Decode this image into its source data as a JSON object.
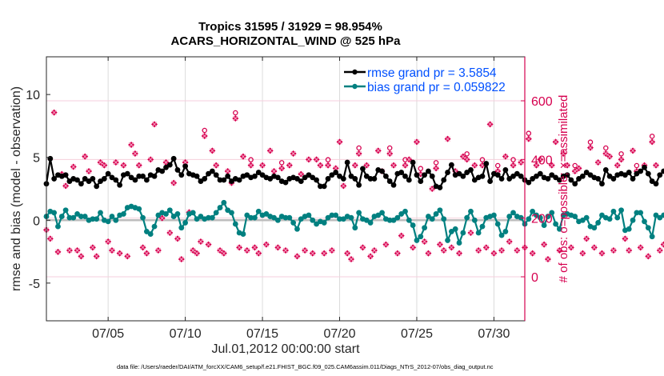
{
  "chart_data": {
    "type": "line",
    "title": [
      "Tropics 31595 / 31929 = 98.954%",
      "ACARS_HORIZONTAL_WIND @ 525 hPa"
    ],
    "xlabel": "Jul.01,2012 00:00:00 start",
    "ylabel": "rmse and bias (model - observation)",
    "y2label": "# of obs: o=possible; ×=assimilated",
    "footnote": "data file: /Users/raeder/DAI/ATM_forcXX/CAM6_setup/f.e21.FHIST_BGC.f09_025.CAM6assim.011/Diags_NTrS_2012-07/obs_diag_output.nc",
    "xlim": [
      1.0,
      32.0
    ],
    "x_ticks": [
      5,
      10,
      15,
      20,
      25,
      30
    ],
    "x_tick_labels": [
      "07/05",
      "07/10",
      "07/15",
      "07/20",
      "07/25",
      "07/30"
    ],
    "ylim": [
      -8,
      13
    ],
    "y_ticks": [
      -5,
      0,
      5,
      10
    ],
    "y_tick_labels": [
      "-5",
      "0",
      "5",
      "10"
    ],
    "y2lim": [
      -150,
      750
    ],
    "y2_ticks": [
      0,
      200,
      400,
      600
    ],
    "y2_tick_labels": [
      "0",
      "200",
      "400",
      "600"
    ],
    "grid": true,
    "zero_line": 0,
    "legend_position": "top-right",
    "series": [
      {
        "name": "rmse grand pr = 3.5854",
        "color": "#000000",
        "axis": "left",
        "x_start": 1.0,
        "x_step": 0.25,
        "values": [
          2.9,
          4.9,
          3.3,
          3.6,
          3.5,
          3.6,
          3.1,
          3.3,
          3.2,
          2.9,
          3.3,
          3.1,
          3.3,
          2.7,
          3.1,
          3.3,
          3.7,
          3.4,
          3.2,
          2.8,
          3.6,
          3.7,
          3.4,
          3.2,
          3.5,
          3.5,
          3.2,
          3.6,
          3.5,
          4.0,
          3.9,
          4.2,
          4.4,
          4.9,
          4.0,
          3.6,
          4.3,
          3.7,
          3.6,
          3.5,
          3.1,
          3.3,
          3.7,
          3.9,
          3.6,
          3.2,
          3.2,
          3.5,
          3.1,
          3.3,
          3.2,
          3.5,
          3.6,
          3.4,
          3.5,
          3.8,
          3.6,
          3.4,
          3.3,
          3.5,
          3.4,
          3.1,
          3.0,
          3.3,
          3.4,
          3.3,
          3.1,
          3.4,
          3.6,
          3.4,
          3.2,
          2.7,
          2.7,
          3.3,
          3.6,
          3.8,
          3.5,
          3.3,
          4.6,
          3.5,
          3.3,
          2.8,
          4.1,
          3.5,
          3.3,
          3.3,
          4.0,
          3.9,
          3.5,
          3.1,
          2.8,
          3.7,
          3.8,
          3.5,
          3.2,
          4.6,
          3.6,
          3.1,
          3.6,
          3.9,
          3.5,
          2.7,
          2.6,
          3.2,
          3.8,
          4.4,
          3.6,
          3.7,
          3.5,
          3.8,
          4.0,
          3.2,
          3.4,
          3.5,
          4.5,
          3.1,
          3.7,
          3.6,
          3.3,
          4.0,
          3.3,
          3.5,
          3.7,
          3.5,
          3.2,
          3.0,
          3.3,
          3.5,
          3.7,
          3.4,
          3.3,
          3.6,
          3.4,
          3.2,
          3.5,
          3.6,
          3.2,
          2.9,
          3.3,
          3.5,
          3.8,
          3.6,
          3.4,
          3.3,
          2.9,
          4.0,
          3.5,
          3.3,
          3.6,
          3.7,
          3.6,
          3.8,
          3.3,
          3.7,
          3.9,
          4.2,
          3.7,
          3.1,
          2.9,
          3.6,
          3.9,
          4.2,
          4.0,
          3.6,
          3.4,
          3.3,
          3.5,
          3.4,
          3.6,
          3.2,
          3.3,
          3.1,
          3.4,
          3.3,
          3.6,
          3.4,
          3.2,
          3.1,
          3.4,
          3.6,
          3.3,
          3.0,
          3.4,
          3.7,
          3.8,
          3.3,
          3.5,
          3.4,
          3.2,
          3.1,
          3.5,
          3.0,
          2.9,
          3.4,
          4.3,
          3.9,
          3.5,
          4.1,
          3.7,
          3.7,
          3.8,
          3.9,
          4.0,
          4.0,
          4.2
        ]
      },
      {
        "name": "bias grand pr = 0.059822",
        "color": "#008080",
        "axis": "left",
        "x_start": 1.0,
        "x_step": 0.25,
        "values": [
          0.3,
          0.7,
          0.6,
          -0.5,
          0.3,
          0.8,
          0.2,
          0.2,
          0.5,
          0.3,
          0.3,
          0.0,
          0.1,
          0.1,
          0.6,
          0.0,
          -0.1,
          0.3,
          0.0,
          0.4,
          0.5,
          1.0,
          1.1,
          1.0,
          0.9,
          0.2,
          -0.9,
          -1.1,
          -0.5,
          0.4,
          0.6,
          0.5,
          0.8,
          0.3,
          0.5,
          -0.6,
          -0.2,
          0.5,
          0.6,
          0.1,
          0.3,
          0.1,
          0.2,
          0.2,
          0.6,
          1.0,
          1.4,
          0.8,
          0.6,
          -0.3,
          -1.0,
          -1.1,
          0.4,
          0.2,
          0.2,
          0.7,
          0.4,
          0.5,
          0.3,
          0.2,
          0.0,
          0.3,
          0.2,
          0.2,
          -0.2,
          -0.7,
          0.1,
          0.3,
          0.4,
          0.0,
          -0.3,
          -0.1,
          -0.2,
          0.2,
          0.4,
          0.4,
          0.1,
          0.1,
          0.3,
          0.2,
          -0.6,
          0.6,
          0.1,
          0.0,
          -0.2,
          0.3,
          0.4,
          0.6,
          0.1,
          0.0,
          0.0,
          0.2,
          0.5,
          0.7,
          0.0,
          -0.4,
          -1.6,
          -1.3,
          -0.6,
          0.3,
          0.1,
          0.5,
          0.8,
          0.1,
          -1.6,
          -0.9,
          -0.7,
          -1.8,
          -1.0,
          0.2,
          0.7,
          0.0,
          -1.0,
          -0.5,
          0.2,
          0.3,
          0.4,
          -0.3,
          -1.2,
          -0.9,
          0.3,
          0.6,
          0.3,
          0.2,
          -0.3,
          0.1,
          0.7,
          0.4,
          0.2,
          -0.4,
          0.3,
          0.6,
          -0.3,
          -0.7,
          0.4,
          0.5,
          0.4,
          0.3,
          -0.1,
          0.0,
          0.2,
          -0.5,
          -0.6,
          -0.2,
          0.4,
          0.2,
          0.1,
          0.7,
          0.2,
          0.8,
          -0.8,
          -0.7,
          0.0,
          0.6,
          0.6,
          -0.1,
          -0.6,
          -1.3,
          0.4,
          0.2,
          0.4,
          1.0,
          0.6,
          -0.5,
          -0.9,
          0.5,
          -0.6,
          0.1,
          -0.4,
          0.3,
          -0.1,
          -0.3,
          0.3,
          -0.3,
          -0.4,
          0.2,
          0.0,
          -0.2,
          -0.4,
          0.3,
          -0.3,
          -0.4,
          -0.1,
          0.2,
          -0.6,
          -0.3,
          0.2,
          1.3,
          0.1,
          -0.6,
          0.2,
          -0.1,
          -0.7,
          -0.2,
          0.2,
          -0.3,
          -0.6,
          0.0,
          -1.1
        ]
      },
      {
        "name": "# of obs possible (o)",
        "color": "#d6004f",
        "axis": "right",
        "marker": "o",
        "note": "values nearly identical to assimilated counts; drawn as small circles above the assimilated markers"
      },
      {
        "name": "# of obs assimilated (×)",
        "color": "#d6004f",
        "axis": "right",
        "marker": "x",
        "x_start": 1.0,
        "x_step": 0.25,
        "values": [
          160,
          130,
          560,
          85,
          350,
          310,
          90,
          375,
          90,
          70,
          410,
          360,
          100,
          70,
          390,
          380,
          120,
          90,
          390,
          80,
          380,
          70,
          450,
          420,
          380,
          100,
          80,
          400,
          520,
          90,
          200,
          390,
          150,
          320,
          130,
          60,
          390,
          220,
          90,
          80,
          120,
          480,
          110,
          430,
          380,
          90,
          80,
          360,
          320,
          540,
          100,
          410,
          90,
          380,
          100,
          80,
          380,
          110,
          430,
          360,
          100,
          370,
          90,
          380,
          420,
          70,
          350,
          90,
          400,
          80,
          400,
          380,
          80,
          380,
          90,
          370,
          460,
          310,
          80,
          60,
          380,
          420,
          100,
          380,
          70,
          90,
          430,
          360,
          110,
          420,
          380,
          80,
          140,
          380,
          400,
          100,
          460,
          350,
          120,
          80,
          300,
          370,
          110,
          90,
          470,
          100,
          360,
          80,
          410,
          400,
          150,
          380,
          90,
          380,
          100,
          520,
          80,
          360,
          90,
          410,
          120,
          380,
          90,
          390,
          100,
          470,
          80,
          380,
          400,
          110,
          60,
          380,
          460,
          90,
          420,
          380,
          100,
          360,
          370,
          80,
          130,
          440,
          100,
          390,
          80,
          420,
          410,
          90,
          380,
          400,
          130,
          90,
          430,
          360,
          100,
          380,
          70,
          460,
          380,
          90,
          110,
          430,
          80,
          400,
          380,
          100,
          410,
          90,
          380,
          110,
          440,
          370,
          80,
          400,
          130,
          80,
          380,
          120,
          410,
          370,
          90,
          380,
          100,
          420,
          390,
          80,
          110,
          380,
          90,
          440,
          380,
          70,
          380,
          390,
          90,
          0
        ]
      }
    ]
  }
}
